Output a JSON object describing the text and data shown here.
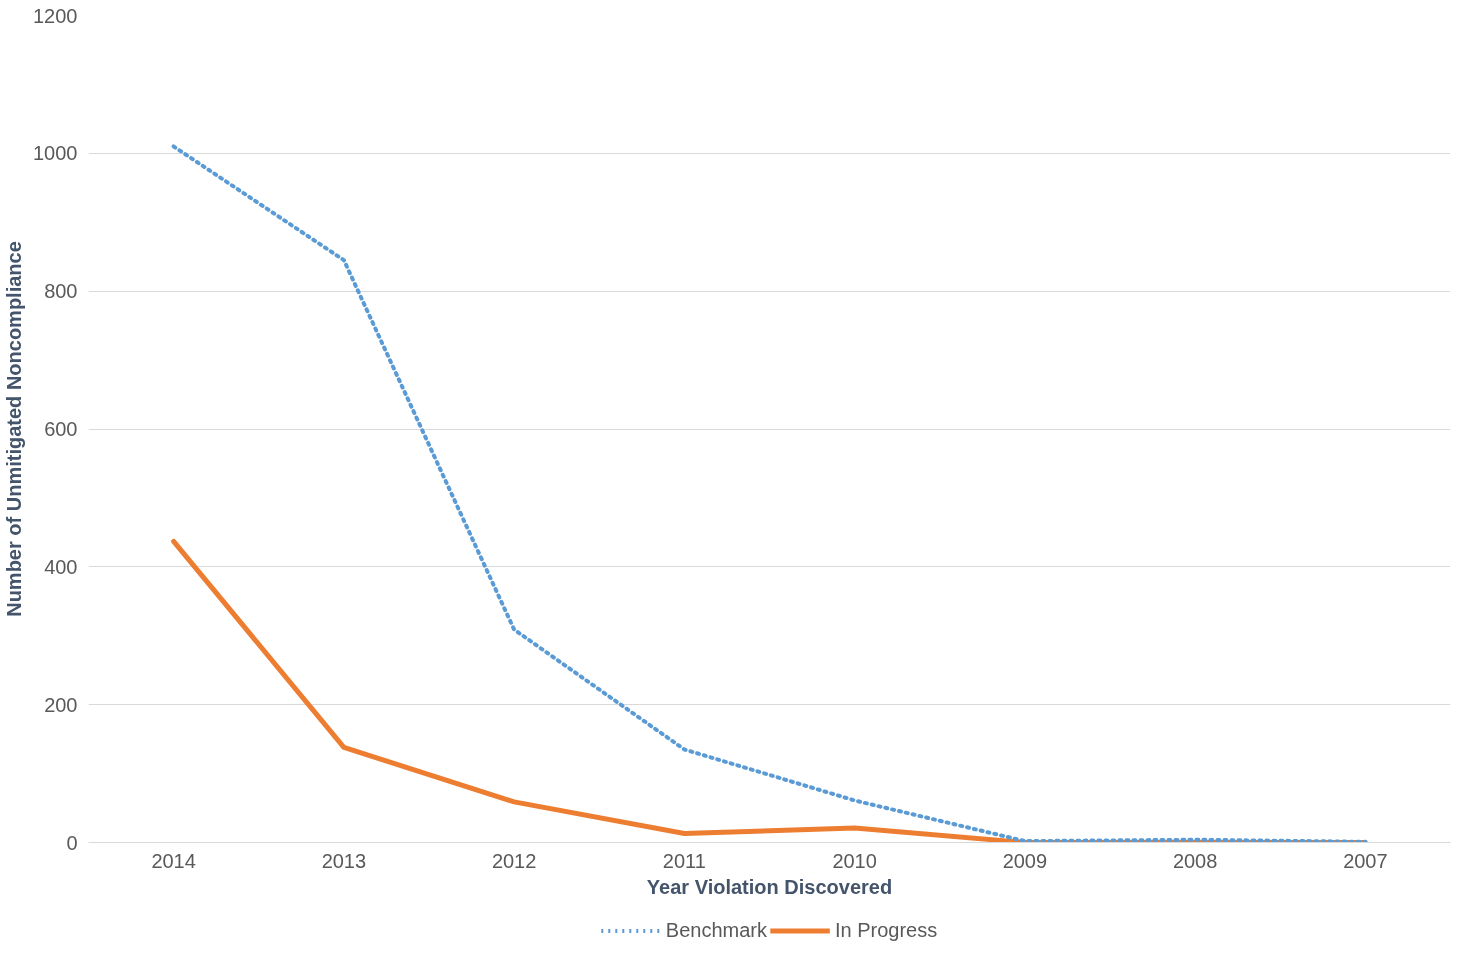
{
  "chart_data": {
    "type": "line",
    "xlabel": "Year Violation Discovered",
    "ylabel": "Number of Unmitigated Noncompliance",
    "categories": [
      "2014",
      "2013",
      "2012",
      "2011",
      "2010",
      "2009",
      "2008",
      "2007"
    ],
    "series": [
      {
        "name": "Benchmark",
        "color": "#5b9bd5",
        "line_style": "dotted",
        "values": [
          1010,
          845,
          309,
          135,
          61,
          2,
          4,
          1
        ]
      },
      {
        "name": "In Progress",
        "color": "#ed7d31",
        "line_style": "solid",
        "values": [
          437,
          138,
          59,
          13,
          21,
          0,
          0,
          0
        ]
      }
    ],
    "ylim": [
      0,
      1200
    ],
    "yticks": [
      0,
      200,
      400,
      600,
      800,
      1000,
      1200
    ],
    "grid": "y",
    "legend": "bottom"
  }
}
